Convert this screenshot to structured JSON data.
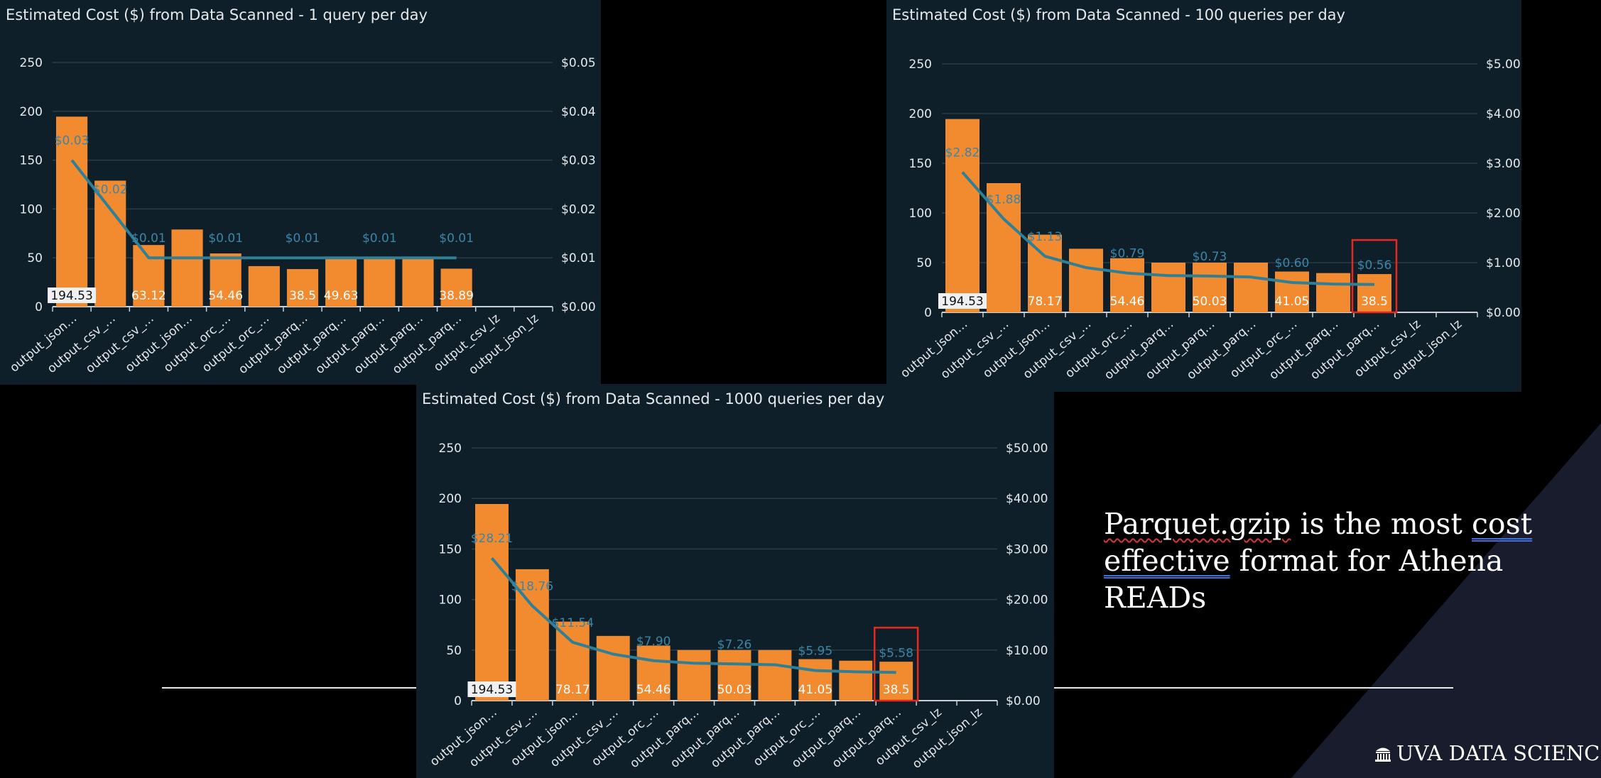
{
  "colors": {
    "background": "#000000",
    "panel": "#0f1f29",
    "bar": "#f28a30",
    "line": "#2f7f96",
    "line_label": "#3a86a6",
    "axis_text": "#e6e9ec",
    "highlight_box": "#e8281e",
    "corner_triangle": "#181c2c"
  },
  "slide": {
    "tagline_part1": "Parquet.gzip",
    "tagline_part2": " is the most ",
    "tagline_part3": "cost",
    "tagline_part4": "effective",
    "tagline_part5": " format for Athena READs",
    "brand": "UVA DATA SCIENCE",
    "brand_icon": "rotunda-icon"
  },
  "chart_data": [
    {
      "type": "bar",
      "title": "Estimated Cost ($) from Data Scanned - 1 query per day",
      "categories": [
        "output_json…",
        "output_csv_…",
        "output_csv_…",
        "output_json…",
        "output_orc_…",
        "output_orc_…",
        "output_parq…",
        "output_parq…",
        "output_parq…",
        "output_parq…",
        "output_parq…",
        "output_csv_lz",
        "output_json_lz"
      ],
      "bar_values": [
        194.53,
        129,
        63.12,
        79,
        54.46,
        41.5,
        38.5,
        49.63,
        49.63,
        49.63,
        38.89,
        null,
        null
      ],
      "bar_labels": [
        "194.53",
        "",
        "63.12",
        "",
        "54.46",
        "",
        "38.5",
        "49.63",
        "",
        "",
        "38.89",
        "",
        ""
      ],
      "line_values": [
        0.03,
        0.02,
        0.01,
        0.01,
        0.01,
        0.01,
        0.01,
        0.01,
        0.01,
        0.01,
        0.01,
        null,
        null
      ],
      "line_labels": [
        "$0.03",
        "$0.02",
        "$0.01",
        "",
        "$0.01",
        "",
        "$0.01",
        "",
        "$0.01",
        "",
        "$0.01",
        "",
        ""
      ],
      "ylim": [
        0,
        250
      ],
      "yticks": [
        0,
        50,
        100,
        150,
        200,
        250
      ],
      "y2lim": [
        0,
        0.05
      ],
      "y2ticks": [
        "$0.00",
        "$0.01",
        "$0.02",
        "$0.03",
        "$0.04",
        "$0.05"
      ],
      "highlight_index": null,
      "grid": true
    },
    {
      "type": "bar",
      "title": "Estimated Cost ($) from Data Scanned - 100 queries per day",
      "categories": [
        "output_json…",
        "output_csv_…",
        "output_json…",
        "output_csv_…",
        "output_orc_…",
        "output_parq…",
        "output_parq…",
        "output_parq…",
        "output_orc_…",
        "output_parq…",
        "output_parq…",
        "output_csv_lz",
        "output_json_lz"
      ],
      "bar_values": [
        194.53,
        130,
        78.17,
        64,
        54.46,
        50.03,
        50.03,
        50.03,
        41.05,
        39.5,
        38.5,
        null,
        null
      ],
      "bar_labels": [
        "194.53",
        "",
        "78.17",
        "",
        "54.46",
        "",
        "50.03",
        "",
        "41.05",
        "",
        "38.5",
        "",
        ""
      ],
      "line_values": [
        2.82,
        1.88,
        1.13,
        0.9,
        0.79,
        0.74,
        0.73,
        0.71,
        0.6,
        0.57,
        0.56,
        null,
        null
      ],
      "line_labels": [
        "$2.82",
        "$1.88",
        "$1.13",
        "",
        "$0.79",
        "",
        "$0.73",
        "",
        "$0.60",
        "",
        "$0.56",
        "",
        ""
      ],
      "ylim": [
        0,
        250
      ],
      "yticks": [
        0,
        50,
        100,
        150,
        200,
        250
      ],
      "y2lim": [
        0,
        5
      ],
      "y2ticks": [
        "$0.00",
        "$1.00",
        "$2.00",
        "$3.00",
        "$4.00",
        "$5.00"
      ],
      "highlight_index": 10,
      "grid": true
    },
    {
      "type": "bar",
      "title": "Estimated Cost ($) from Data Scanned - 1000 queries per day",
      "categories": [
        "output_json…",
        "output_csv_…",
        "output_json…",
        "output_csv_…",
        "output_orc_…",
        "output_parq…",
        "output_parq…",
        "output_parq…",
        "output_orc_…",
        "output_parq…",
        "output_parq…",
        "output_csv_lz",
        "output_json_lz"
      ],
      "bar_values": [
        194.53,
        130,
        78.17,
        64,
        54.46,
        50.03,
        50.03,
        50.03,
        41.05,
        39.5,
        38.5,
        null,
        null
      ],
      "bar_labels": [
        "194.53",
        "",
        "78.17",
        "",
        "54.46",
        "",
        "50.03",
        "",
        "41.05",
        "",
        "38.5",
        "",
        ""
      ],
      "line_values": [
        28.21,
        18.76,
        11.54,
        9.2,
        7.9,
        7.4,
        7.26,
        7.1,
        5.95,
        5.7,
        5.58,
        null,
        null
      ],
      "line_labels": [
        "$28.21",
        "$18.76",
        "$11.54",
        "",
        "$7.90",
        "",
        "$7.26",
        "",
        "$5.95",
        "",
        "$5.58",
        "",
        ""
      ],
      "ylim": [
        0,
        250
      ],
      "yticks": [
        0,
        50,
        100,
        150,
        200,
        250
      ],
      "y2lim": [
        0,
        50
      ],
      "y2ticks": [
        "$0.00",
        "$10.00",
        "$20.00",
        "$30.00",
        "$40.00",
        "$50.00"
      ],
      "highlight_index": 10,
      "grid": true
    }
  ]
}
